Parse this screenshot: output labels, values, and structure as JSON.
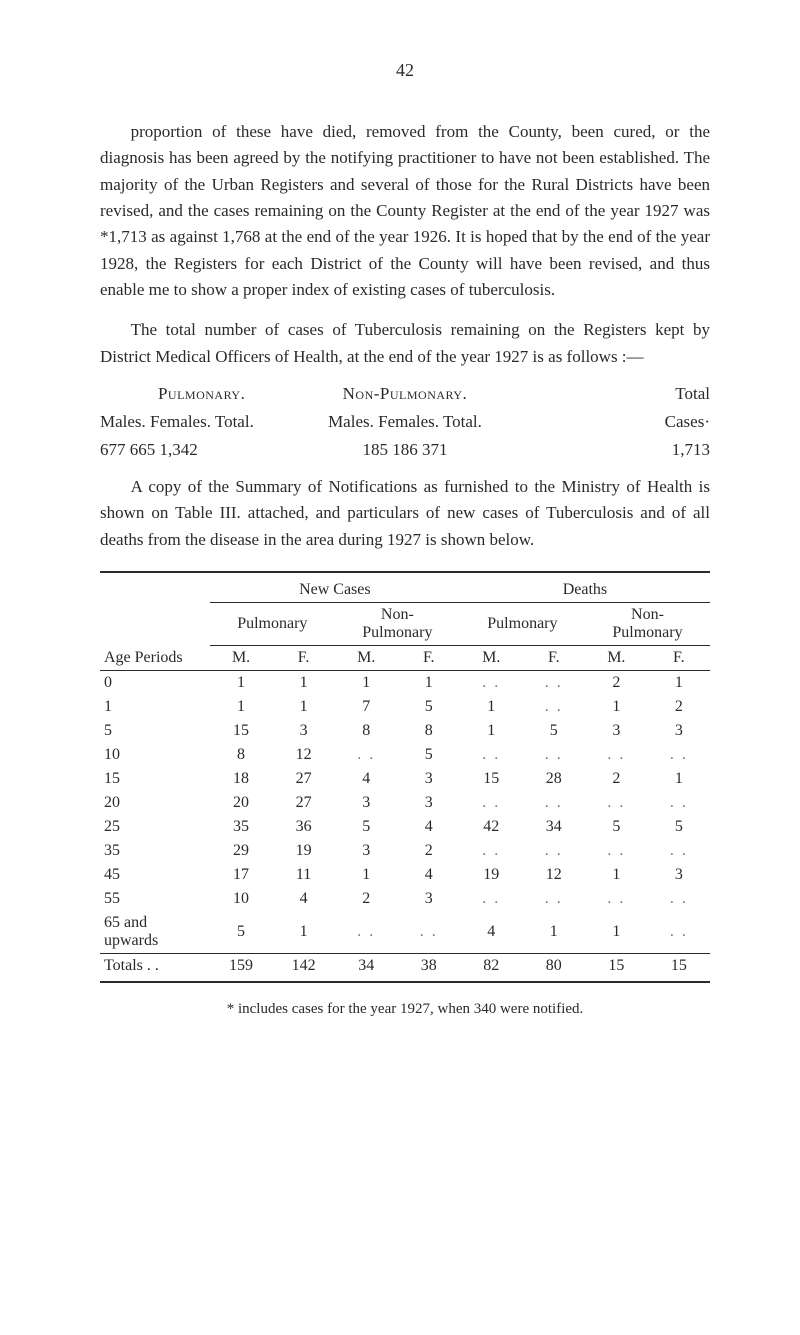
{
  "page_number": "42",
  "paragraphs": {
    "p1": "proportion of these have died, removed from the County, been cured, or the diagnosis has been agreed by the notifying practitioner to have not been established. The majority of the Urban Registers and several of those for the Rural Districts have been revised, and the cases remaining on the County Register at the end of the year 1927 was *1,713 as against 1,768 at the end of the year 1926. It is hoped that by the end of the year 1928, the Registers for each District of the County will have been revised, and thus enable me to show a proper index of existing cases of tuberculosis.",
    "p2": "The total number of cases of Tuberculosis remaining on the Registers kept by District Medical Officers of Health, at the end of the year 1927 is as follows :—",
    "p3": "A copy of the Summary of Notifications as furnished to the Ministry of Health is shown on Table III. attached, and particulars of new cases of Tuberculosis and of all deaths from the disease in the area during 1927 is shown below."
  },
  "summary_block": {
    "h1": "Pulmonary.",
    "h2": "Non-Pulmonary.",
    "h3": "Total",
    "sub_left": "Males.  Females.  Total.",
    "sub_mid": "Males.  Females.  Total.",
    "sub_right": "Cases·",
    "vals_left": "677      665        1,342",
    "vals_mid": "185      186        371",
    "vals_right": "1,713"
  },
  "table": {
    "group_new": "New Cases",
    "group_deaths": "Deaths",
    "col_age": "Age Periods",
    "col_pulm": "Pulmonary",
    "col_nonpulm": "Non-\nPulmonary",
    "col_M": "M.",
    "col_F": "F.",
    "rows": [
      {
        "age": "0",
        "a": "1",
        "b": "1",
        "c": "1",
        "d": "1",
        "e": ". .",
        "f": ". .",
        "g": "2",
        "h": "1"
      },
      {
        "age": "1",
        "a": "1",
        "b": "1",
        "c": "7",
        "d": "5",
        "e": "1",
        "f": ". .",
        "g": "1",
        "h": "2"
      },
      {
        "age": "5",
        "a": "15",
        "b": "3",
        "c": "8",
        "d": "8",
        "e": "1",
        "f": "5",
        "g": "3",
        "h": "3"
      },
      {
        "age": "10",
        "a": "8",
        "b": "12",
        "c": ". .",
        "d": "5",
        "e": ". .",
        "f": ". .",
        "g": ". .",
        "h": ". ."
      },
      {
        "age": "15",
        "a": "18",
        "b": "27",
        "c": "4",
        "d": "3",
        "e": "15",
        "f": "28",
        "g": "2",
        "h": "1"
      },
      {
        "age": "20",
        "a": "20",
        "b": "27",
        "c": "3",
        "d": "3",
        "e": ". .",
        "f": ". .",
        "g": ". .",
        "h": ". ."
      },
      {
        "age": "25",
        "a": "35",
        "b": "36",
        "c": "5",
        "d": "4",
        "e": "42",
        "f": "34",
        "g": "5",
        "h": "5"
      },
      {
        "age": "35",
        "a": "29",
        "b": "19",
        "c": "3",
        "d": "2",
        "e": ". .",
        "f": ". .",
        "g": ". .",
        "h": ". ."
      },
      {
        "age": "45",
        "a": "17",
        "b": "11",
        "c": "1",
        "d": "4",
        "e": "19",
        "f": "12",
        "g": "1",
        "h": "3"
      },
      {
        "age": "55",
        "a": "10",
        "b": "4",
        "c": "2",
        "d": "3",
        "e": ". .",
        "f": ". .",
        "g": ". .",
        "h": ". ."
      },
      {
        "age": "65 and\n  upwards",
        "a": "5",
        "b": "1",
        "c": ". .",
        "d": ". .",
        "e": "4",
        "f": "1",
        "g": "1",
        "h": ". ."
      }
    ],
    "totals_label": "Totals . .",
    "totals": {
      "a": "159",
      "b": "142",
      "c": "34",
      "d": "38",
      "e": "82",
      "f": "80",
      "g": "15",
      "h": "15"
    }
  },
  "footnote": "* includes cases for the year 1927, when 340 were notified."
}
